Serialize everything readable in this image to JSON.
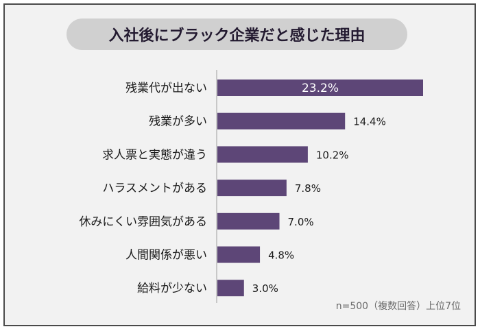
{
  "chart_data": {
    "type": "bar",
    "orientation": "horizontal",
    "title": "入社後にブラック企業だと感じた理由",
    "categories": [
      "残業代が出ない",
      "残業が多い",
      "求人票と実態が違う",
      "ハラスメントがある",
      "休みにくい雰囲気がある",
      "人間関係が悪い",
      "給料が少ない"
    ],
    "values": [
      23.2,
      14.4,
      10.2,
      7.8,
      7.0,
      4.8,
      3.0
    ],
    "value_labels": [
      "23.2%",
      "14.4%",
      "10.2%",
      "7.8%",
      "7.0%",
      "4.8%",
      "3.0%"
    ],
    "unit": "%",
    "xlim": [
      0,
      23.2
    ],
    "grid": false,
    "bar_color": "#5d4677",
    "note": "n=500（複数回答）上位7位"
  }
}
